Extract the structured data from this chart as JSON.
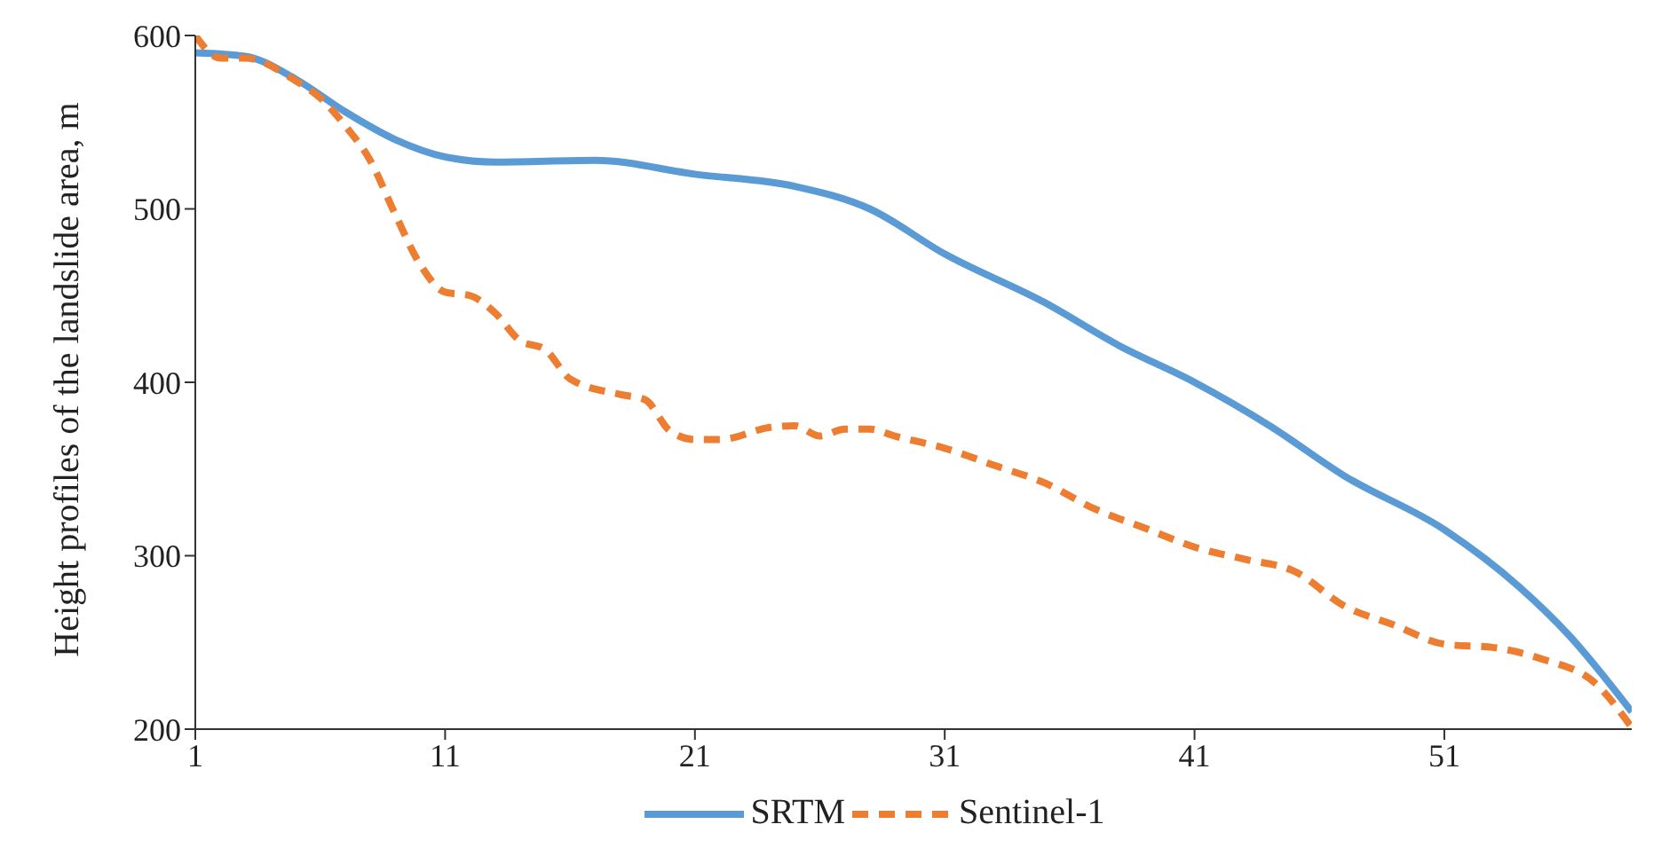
{
  "chart_data": {
    "type": "line",
    "ylabel": "Height profiles of the landslide area, m",
    "xlim": [
      1,
      58.5
    ],
    "xticks": [
      1,
      11,
      21,
      31,
      41,
      51
    ],
    "ylim": [
      200,
      600
    ],
    "yticks": [
      200,
      300,
      400,
      500,
      600
    ],
    "legend": "bottom",
    "marker": "none",
    "series": [
      {
        "name": "SRTM",
        "color": "#5b9bd5",
        "line_style": "solid",
        "x": [
          1,
          3,
          5,
          7,
          9,
          11,
          13,
          17,
          21,
          25,
          28,
          31,
          35,
          38,
          41,
          44,
          47,
          51,
          54,
          56,
          58.5
        ],
        "values": [
          590,
          588,
          575,
          556,
          540,
          530,
          527,
          528,
          520,
          513,
          500,
          474,
          446,
          421,
          400,
          375,
          346,
          315,
          282,
          254,
          210
        ]
      },
      {
        "name": "Sentinel-1",
        "color": "#ed7d31",
        "line_style": "dashed",
        "x": [
          1,
          2,
          3,
          5,
          6,
          7,
          8,
          9,
          10,
          11,
          12,
          13,
          14,
          15,
          16,
          18,
          19,
          20,
          21,
          22,
          24,
          25,
          26,
          27,
          28,
          29,
          31,
          33,
          35,
          37,
          39,
          41,
          43,
          45,
          47,
          49,
          51,
          53,
          55,
          57,
          58.5
        ],
        "values": [
          600,
          587,
          587,
          574,
          564,
          548,
          528,
          497,
          468,
          452,
          450,
          440,
          424,
          419,
          402,
          393,
          390,
          372,
          367,
          367,
          374,
          375,
          369,
          373,
          373,
          369,
          362,
          352,
          342,
          327,
          316,
          305,
          298,
          291,
          271,
          260,
          249,
          247,
          240,
          227,
          201
        ]
      }
    ]
  }
}
